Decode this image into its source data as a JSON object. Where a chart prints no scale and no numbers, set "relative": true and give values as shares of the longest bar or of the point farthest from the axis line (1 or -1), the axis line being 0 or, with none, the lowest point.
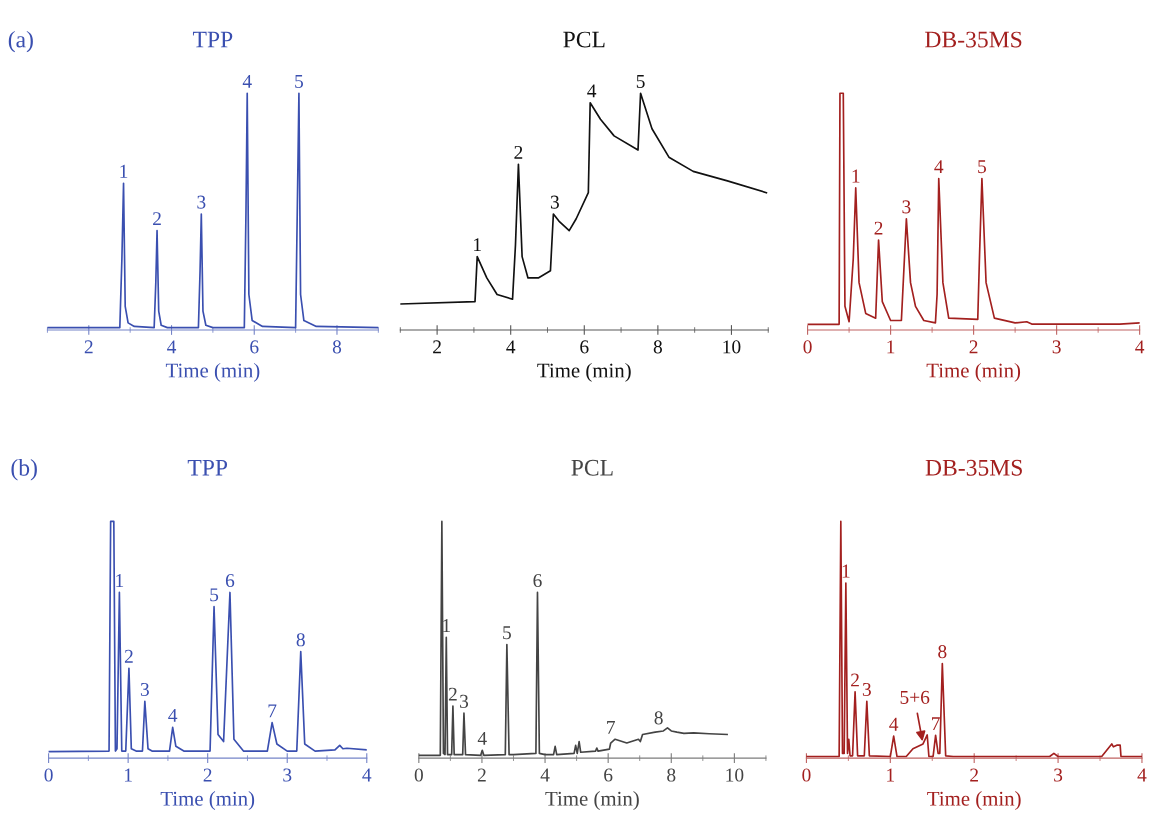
{
  "chart_data": [
    {
      "type": "line",
      "title": "TPP",
      "xlabel": "Time (min)",
      "relative": true,
      "xlim": [
        1,
        9
      ],
      "xticks": [
        2,
        4,
        6,
        8
      ],
      "grid": false,
      "legend": false,
      "tick_labels": "x",
      "annotations": [
        "(a)",
        {
          "text": "1",
          "x": 2.84,
          "y": 0.62
        },
        {
          "text": "2",
          "x": 3.65,
          "y": 0.42
        },
        {
          "text": "3",
          "x": 4.72,
          "y": 0.49
        },
        {
          "text": "4",
          "x": 5.83,
          "y": 1.0
        },
        {
          "text": "5",
          "x": 7.08,
          "y": 1.0
        }
      ],
      "series": [
        {
          "color": "#3a4fb0",
          "x": [
            1.0,
            2.75,
            2.8,
            2.84,
            2.88,
            2.95,
            3.1,
            3.58,
            3.62,
            3.65,
            3.69,
            3.75,
            3.9,
            4.65,
            4.69,
            4.72,
            4.76,
            4.83,
            5.0,
            5.76,
            5.8,
            5.83,
            5.87,
            5.95,
            6.2,
            7.0,
            7.04,
            7.08,
            7.12,
            7.2,
            7.5,
            9.0
          ],
          "values": [
            0.01,
            0.01,
            0.3,
            0.62,
            0.1,
            0.03,
            0.015,
            0.01,
            0.2,
            0.42,
            0.08,
            0.02,
            0.01,
            0.01,
            0.25,
            0.49,
            0.08,
            0.02,
            0.01,
            0.01,
            0.5,
            1.0,
            0.15,
            0.04,
            0.015,
            0.01,
            0.5,
            1.0,
            0.15,
            0.04,
            0.015,
            0.01
          ]
        }
      ]
    },
    {
      "type": "line",
      "title": "PCL",
      "xlabel": "Time (min)",
      "relative": true,
      "xlim": [
        1,
        11
      ],
      "xticks": [
        2,
        4,
        6,
        8,
        10
      ],
      "grid": false,
      "legend": false,
      "tick_labels": "x",
      "annotations": [
        {
          "text": "1",
          "x": 3.09,
          "y": 0.31
        },
        {
          "text": "2",
          "x": 4.21,
          "y": 0.7
        },
        {
          "text": "3",
          "x": 5.2,
          "y": 0.49
        },
        {
          "text": "4",
          "x": 6.2,
          "y": 0.96
        },
        {
          "text": "5",
          "x": 7.53,
          "y": 1.0
        }
      ],
      "series": [
        {
          "color": "#111111",
          "x": [
            1.0,
            3.03,
            3.09,
            3.35,
            3.63,
            4.05,
            4.13,
            4.21,
            4.31,
            4.47,
            4.75,
            5.08,
            5.16,
            5.31,
            5.59,
            5.78,
            6.11,
            6.16,
            6.44,
            6.81,
            7.46,
            7.53,
            7.84,
            8.3,
            8.96,
            9.89,
            10.95
          ],
          "values": [
            0.11,
            0.12,
            0.31,
            0.22,
            0.15,
            0.13,
            0.36,
            0.7,
            0.31,
            0.22,
            0.22,
            0.25,
            0.49,
            0.46,
            0.42,
            0.47,
            0.58,
            0.96,
            0.89,
            0.82,
            0.76,
            1.0,
            0.85,
            0.73,
            0.67,
            0.63,
            0.58
          ]
        }
      ]
    },
    {
      "type": "line",
      "title": "DB-35MS",
      "xlabel": "Time (min)",
      "relative": true,
      "xlim": [
        0,
        4
      ],
      "xticks": [
        0,
        1,
        2,
        3,
        4
      ],
      "grid": false,
      "legend": false,
      "tick_labels": "x",
      "annotations": [
        {
          "text": "1",
          "x": 0.58,
          "y": 0.6
        },
        {
          "text": "2",
          "x": 0.855,
          "y": 0.38
        },
        {
          "text": "3",
          "x": 1.19,
          "y": 0.47
        },
        {
          "text": "4",
          "x": 1.58,
          "y": 0.64
        },
        {
          "text": "5",
          "x": 2.1,
          "y": 0.64
        }
      ],
      "series": [
        {
          "color": "#a3201f",
          "x": [
            0,
            0.38,
            0.39,
            0.43,
            0.45,
            0.5,
            0.55,
            0.58,
            0.62,
            0.7,
            0.82,
            0.855,
            0.9,
            1.0,
            1.13,
            1.19,
            1.24,
            1.3,
            1.4,
            1.54,
            1.56,
            1.58,
            1.63,
            1.7,
            2.05,
            2.07,
            2.1,
            2.15,
            2.25,
            2.5,
            2.64,
            2.7,
            3.76,
            4.0
          ],
          "values": [
            0.024,
            0.024,
            1.0,
            1.0,
            0.1,
            0.035,
            0.3,
            0.6,
            0.2,
            0.07,
            0.05,
            0.38,
            0.12,
            0.04,
            0.04,
            0.47,
            0.2,
            0.1,
            0.04,
            0.03,
            0.15,
            0.64,
            0.2,
            0.05,
            0.045,
            0.3,
            0.64,
            0.2,
            0.05,
            0.03,
            0.035,
            0.025,
            0.025,
            0.03
          ]
        }
      ]
    },
    {
      "type": "line",
      "title": "TPP",
      "xlabel": "Time (min)",
      "relative": true,
      "xlim": [
        0,
        4
      ],
      "xticks": [
        0,
        1,
        2,
        3,
        4
      ],
      "grid": false,
      "legend": false,
      "tick_labels": "x",
      "annotations": [
        "(b)",
        {
          "text": "1",
          "x": 0.89,
          "y": 0.7
        },
        {
          "text": "2",
          "x": 1.01,
          "y": 0.38
        },
        {
          "text": "3",
          "x": 1.21,
          "y": 0.24
        },
        {
          "text": "4",
          "x": 1.56,
          "y": 0.13
        },
        {
          "text": "5",
          "x": 2.08,
          "y": 0.64
        },
        {
          "text": "6",
          "x": 2.28,
          "y": 0.7
        },
        {
          "text": "7",
          "x": 2.81,
          "y": 0.15
        },
        {
          "text": "8",
          "x": 3.17,
          "y": 0.45
        }
      ],
      "series": [
        {
          "color": "#3a4fb0",
          "x": [
            0,
            0.76,
            0.78,
            0.82,
            0.84,
            0.86,
            0.89,
            0.92,
            0.97,
            1.01,
            1.04,
            1.1,
            1.18,
            1.21,
            1.25,
            1.3,
            1.52,
            1.56,
            1.6,
            1.7,
            2.03,
            2.08,
            2.13,
            2.2,
            2.28,
            2.33,
            2.45,
            2.75,
            2.81,
            2.87,
            3.0,
            3.12,
            3.17,
            3.22,
            3.35,
            3.6,
            3.66,
            3.7,
            3.75,
            4.0
          ],
          "values": [
            0.028,
            0.03,
            1.0,
            1.0,
            0.03,
            0.04,
            0.7,
            0.03,
            0.03,
            0.38,
            0.04,
            0.03,
            0.03,
            0.24,
            0.04,
            0.03,
            0.03,
            0.13,
            0.05,
            0.03,
            0.03,
            0.64,
            0.1,
            0.07,
            0.7,
            0.08,
            0.03,
            0.03,
            0.15,
            0.06,
            0.03,
            0.03,
            0.45,
            0.06,
            0.03,
            0.035,
            0.054,
            0.04,
            0.042,
            0.035
          ]
        }
      ]
    },
    {
      "type": "line",
      "title": "PCL",
      "xlabel": "Time (min)",
      "relative": true,
      "xlim": [
        0,
        11
      ],
      "xticks": [
        0,
        2,
        4,
        6,
        8,
        10
      ],
      "grid": false,
      "legend": false,
      "tick_labels": "x",
      "annotations": [
        {
          "text": "1",
          "x": 0.87,
          "y": 0.51
        },
        {
          "text": "2",
          "x": 1.08,
          "y": 0.22
        },
        {
          "text": "3",
          "x": 1.43,
          "y": 0.19
        },
        {
          "text": "4",
          "x": 2.01,
          "y": 0.033
        },
        {
          "text": "5",
          "x": 2.79,
          "y": 0.48
        },
        {
          "text": "6",
          "x": 3.76,
          "y": 0.7
        },
        {
          "text": "7",
          "x": 6.08,
          "y": 0.08
        },
        {
          "text": "8",
          "x": 7.6,
          "y": 0.12
        }
      ],
      "series": [
        {
          "color": "#444444",
          "x": [
            0,
            0.68,
            0.73,
            0.78,
            0.83,
            0.87,
            0.91,
            1.04,
            1.08,
            1.12,
            1.39,
            1.43,
            1.48,
            1.96,
            2.01,
            2.06,
            2.74,
            2.79,
            2.86,
            3.0,
            3.71,
            3.76,
            3.82,
            4.0,
            4.27,
            4.32,
            4.37,
            4.92,
            4.97,
            5.02,
            5.08,
            5.13,
            5.6,
            5.64,
            5.68,
            6.04,
            6.08,
            6.22,
            6.59,
            6.96,
            7.02,
            7.09,
            7.49,
            7.75,
            7.88,
            8.0,
            8.18,
            8.4,
            8.71,
            9.2,
            9.77
          ],
          "values": [
            0.012,
            0.012,
            1.0,
            0.02,
            0.015,
            0.51,
            0.015,
            0.015,
            0.22,
            0.015,
            0.015,
            0.19,
            0.015,
            0.012,
            0.033,
            0.012,
            0.015,
            0.48,
            0.015,
            0.015,
            0.02,
            0.7,
            0.02,
            0.015,
            0.015,
            0.05,
            0.015,
            0.02,
            0.054,
            0.02,
            0.07,
            0.025,
            0.03,
            0.043,
            0.03,
            0.038,
            0.064,
            0.08,
            0.064,
            0.08,
            0.07,
            0.1,
            0.11,
            0.115,
            0.128,
            0.115,
            0.11,
            0.105,
            0.107,
            0.103,
            0.1
          ]
        }
      ]
    },
    {
      "type": "line",
      "title": "DB-35MS",
      "xlabel": "Time (min)",
      "relative": true,
      "xlim": [
        0,
        4
      ],
      "xticks": [
        0,
        1,
        2,
        3,
        4
      ],
      "grid": false,
      "legend": false,
      "tick_labels": "x",
      "annotations": [
        {
          "text": "1",
          "x": 0.47,
          "y": 0.74
        },
        {
          "text": "2",
          "x": 0.58,
          "y": 0.28
        },
        {
          "text": "3",
          "x": 0.72,
          "y": 0.24
        },
        {
          "text": "4",
          "x": 1.04,
          "y": 0.093
        },
        {
          "text": "5+6",
          "x": 1.39,
          "y": 0.06
        },
        {
          "text": "7",
          "x": 1.54,
          "y": 0.096
        },
        {
          "text": "8",
          "x": 1.62,
          "y": 0.4
        }
      ],
      "series": [
        {
          "color": "#a3201f",
          "x": [
            0,
            0.39,
            0.41,
            0.43,
            0.45,
            0.47,
            0.49,
            0.505,
            0.52,
            0.55,
            0.58,
            0.61,
            0.69,
            0.72,
            0.75,
            1.0,
            1.04,
            1.08,
            1.19,
            1.27,
            1.39,
            1.44,
            1.46,
            1.51,
            1.54,
            1.57,
            1.59,
            1.62,
            1.66,
            1.75,
            2.9,
            2.95,
            3.0,
            3.52,
            3.64,
            3.66,
            3.7,
            3.74,
            3.75,
            4.0
          ],
          "values": [
            0.007,
            0.007,
            1.0,
            0.02,
            0.02,
            0.74,
            0.02,
            0.08,
            0.01,
            0.01,
            0.28,
            0.01,
            0.01,
            0.24,
            0.01,
            0.007,
            0.093,
            0.007,
            0.007,
            0.04,
            0.06,
            0.098,
            0.007,
            0.007,
            0.096,
            0.02,
            0.02,
            0.4,
            0.01,
            0.007,
            0.007,
            0.02,
            0.007,
            0.007,
            0.06,
            0.048,
            0.055,
            0.055,
            0.007,
            0.007
          ]
        }
      ]
    }
  ]
}
